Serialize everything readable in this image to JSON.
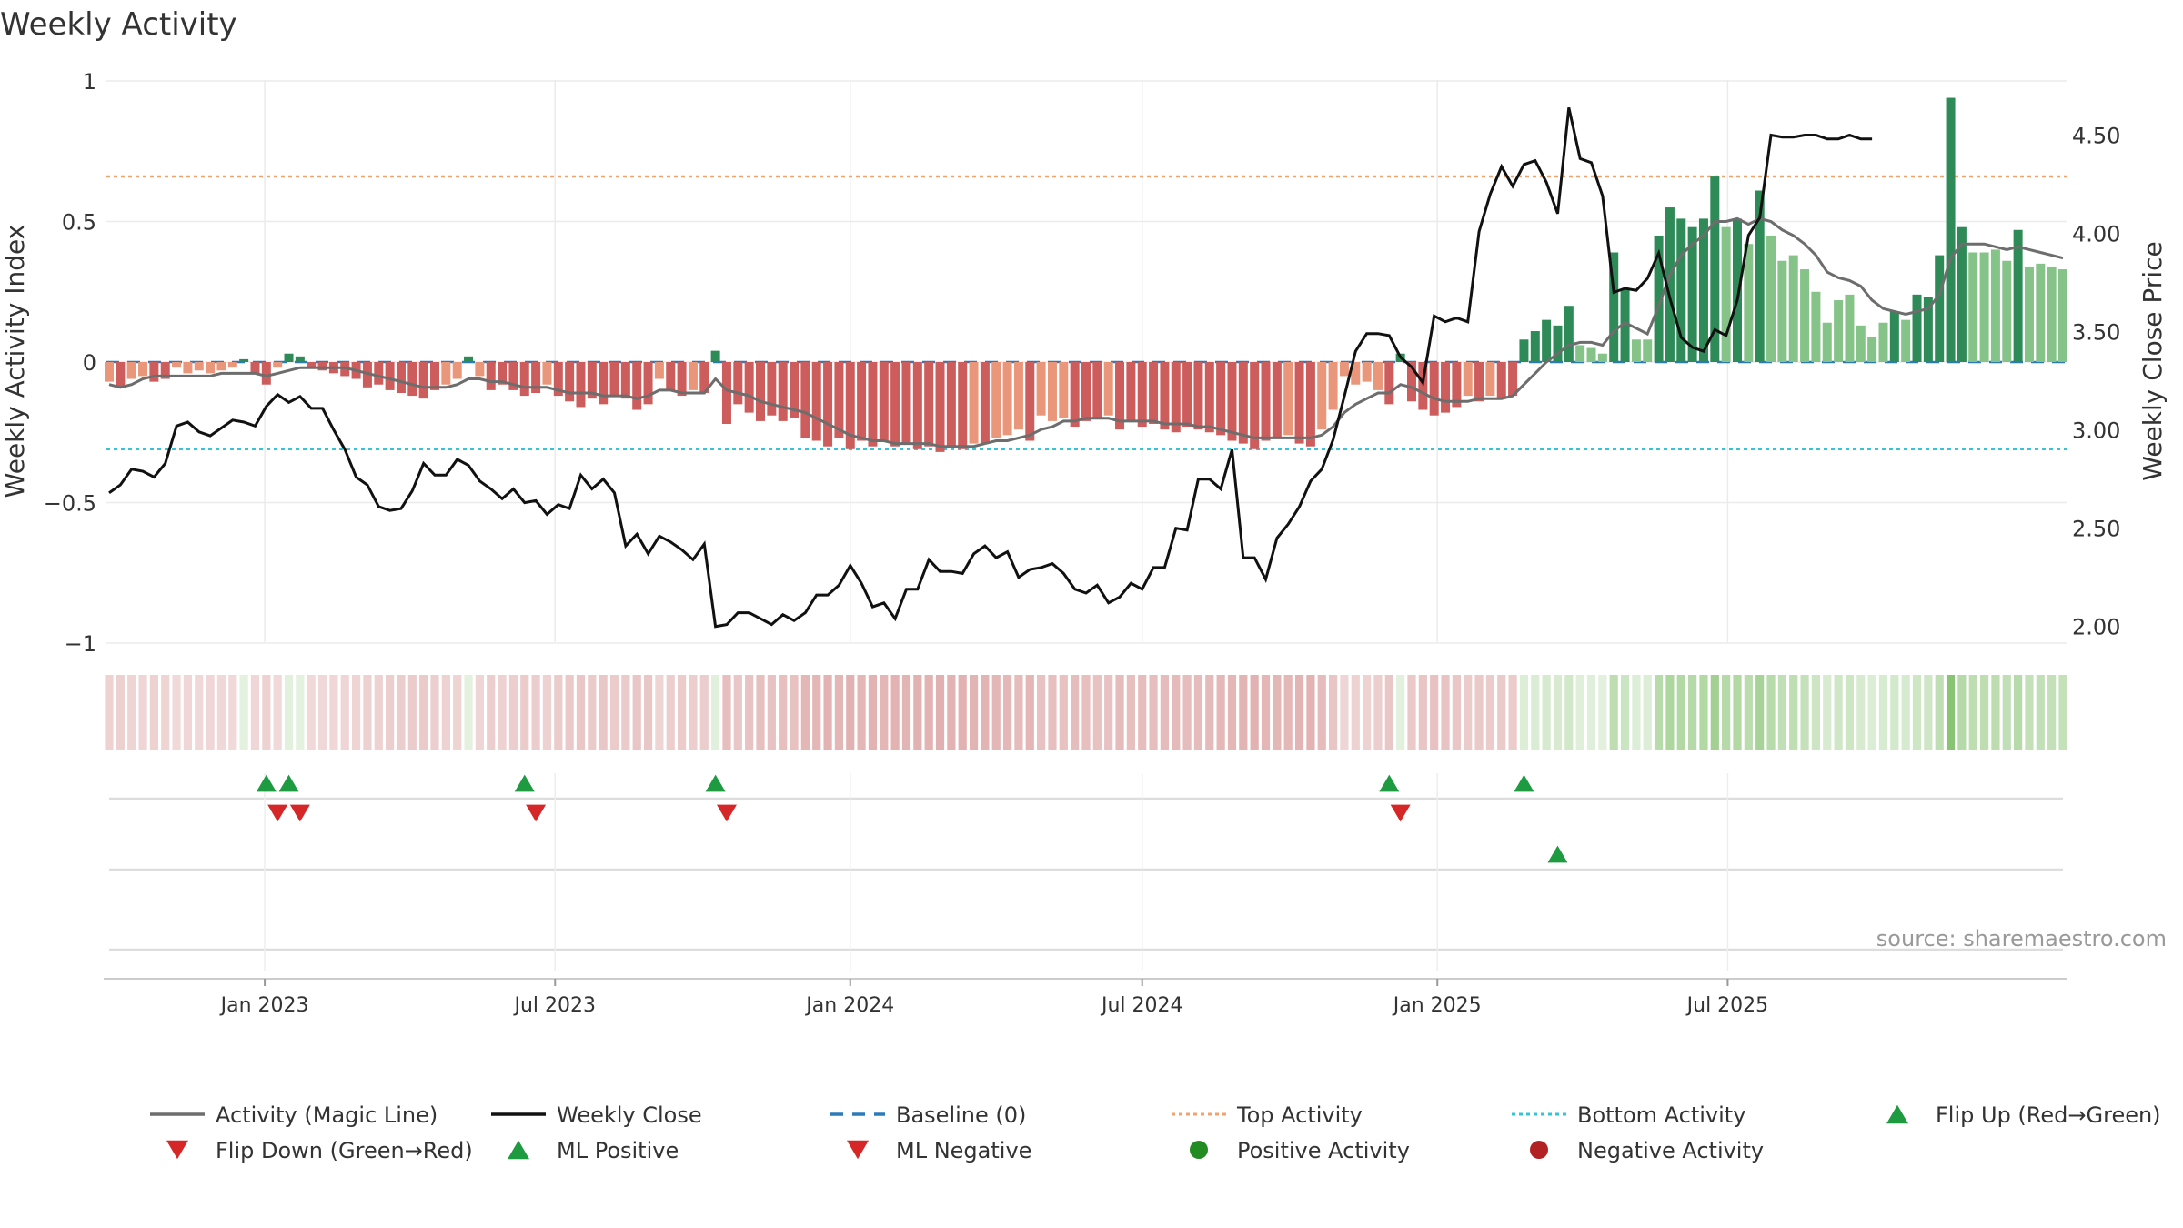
{
  "page": {
    "title": "Weekly Activity"
  },
  "chart_data": {
    "type": "combo-bar-line",
    "title": "Weekly Activity",
    "source": "source: sharemaestro.com",
    "x_start": "2022-09-26",
    "x_step_days": 7,
    "x_ticks": [
      "Jan 2023",
      "Jul 2023",
      "Jan 2024",
      "Jul 2024",
      "Jan 2025",
      "Jul 2025"
    ],
    "y_left": {
      "label": "Weekly Activity Index",
      "range": [
        -1,
        1
      ],
      "ticks": [
        1,
        0.5,
        0,
        -0.5,
        -1
      ],
      "tick_labels": [
        "1",
        "0.5",
        "0",
        "−0.5",
        "−1"
      ]
    },
    "y_right": {
      "label": "Weekly Close Price",
      "range": [
        1.92,
        4.78
      ],
      "ticks": [
        4.5,
        4.0,
        3.5,
        3.0,
        2.5,
        2.0
      ],
      "tick_labels": [
        "4.50",
        "4.00",
        "3.50",
        "3.00",
        "2.50",
        "2.00"
      ]
    },
    "activity": [
      -0.07,
      -0.09,
      -0.06,
      -0.05,
      -0.07,
      -0.06,
      -0.02,
      -0.04,
      -0.03,
      -0.04,
      -0.03,
      -0.02,
      0.01,
      -0.04,
      -0.08,
      -0.02,
      0.03,
      0.02,
      -0.02,
      -0.03,
      -0.04,
      -0.05,
      -0.06,
      -0.09,
      -0.08,
      -0.1,
      -0.11,
      -0.12,
      -0.13,
      -0.1,
      -0.08,
      -0.06,
      0.02,
      -0.05,
      -0.1,
      -0.08,
      -0.1,
      -0.12,
      -0.11,
      -0.08,
      -0.12,
      -0.14,
      -0.16,
      -0.13,
      -0.15,
      -0.12,
      -0.13,
      -0.17,
      -0.15,
      -0.06,
      -0.1,
      -0.12,
      -0.1,
      -0.11,
      0.04,
      -0.22,
      -0.15,
      -0.18,
      -0.21,
      -0.19,
      -0.21,
      -0.2,
      -0.27,
      -0.28,
      -0.3,
      -0.27,
      -0.31,
      -0.28,
      -0.3,
      -0.28,
      -0.3,
      -0.29,
      -0.31,
      -0.3,
      -0.32,
      -0.3,
      -0.31,
      -0.29,
      -0.29,
      -0.27,
      -0.26,
      -0.24,
      -0.28,
      -0.19,
      -0.21,
      -0.2,
      -0.23,
      -0.21,
      -0.2,
      -0.19,
      -0.24,
      -0.21,
      -0.23,
      -0.22,
      -0.24,
      -0.25,
      -0.23,
      -0.24,
      -0.25,
      -0.26,
      -0.28,
      -0.29,
      -0.31,
      -0.28,
      -0.27,
      -0.26,
      -0.29,
      -0.3,
      -0.24,
      -0.17,
      -0.05,
      -0.08,
      -0.07,
      -0.1,
      -0.15,
      0.03,
      -0.14,
      -0.17,
      -0.19,
      -0.18,
      -0.16,
      -0.12,
      -0.14,
      -0.12,
      -0.13,
      -0.12,
      0.08,
      0.11,
      0.15,
      0.13,
      0.2,
      0.06,
      0.05,
      0.03,
      0.39,
      0.26,
      0.08,
      0.08,
      0.45,
      0.55,
      0.51,
      0.48,
      0.51,
      0.66,
      0.48,
      0.51,
      0.42,
      0.61,
      0.45,
      0.36,
      0.38,
      0.33,
      0.25,
      0.14,
      0.22,
      0.24,
      0.13,
      0.09,
      0.14,
      0.18,
      0.15,
      0.24,
      0.23,
      0.38,
      0.94,
      0.48,
      0.39,
      0.39,
      0.4,
      0.36,
      0.47,
      0.34,
      0.35,
      0.34,
      0.33
    ],
    "magic_line": [
      -0.08,
      -0.09,
      -0.08,
      -0.06,
      -0.05,
      -0.05,
      -0.05,
      -0.05,
      -0.05,
      -0.05,
      -0.04,
      -0.04,
      -0.04,
      -0.04,
      -0.05,
      -0.04,
      -0.03,
      -0.02,
      -0.02,
      -0.02,
      -0.02,
      -0.02,
      -0.03,
      -0.04,
      -0.05,
      -0.06,
      -0.07,
      -0.08,
      -0.09,
      -0.09,
      -0.09,
      -0.08,
      -0.06,
      -0.06,
      -0.07,
      -0.07,
      -0.08,
      -0.09,
      -0.09,
      -0.09,
      -0.1,
      -0.11,
      -0.11,
      -0.11,
      -0.12,
      -0.12,
      -0.12,
      -0.13,
      -0.12,
      -0.1,
      -0.1,
      -0.11,
      -0.11,
      -0.11,
      -0.06,
      -0.1,
      -0.11,
      -0.12,
      -0.14,
      -0.15,
      -0.16,
      -0.17,
      -0.18,
      -0.2,
      -0.22,
      -0.24,
      -0.26,
      -0.27,
      -0.28,
      -0.28,
      -0.29,
      -0.29,
      -0.29,
      -0.29,
      -0.3,
      -0.3,
      -0.3,
      -0.3,
      -0.29,
      -0.28,
      -0.28,
      -0.27,
      -0.26,
      -0.24,
      -0.23,
      -0.21,
      -0.21,
      -0.2,
      -0.2,
      -0.2,
      -0.21,
      -0.21,
      -0.21,
      -0.21,
      -0.22,
      -0.22,
      -0.22,
      -0.23,
      -0.23,
      -0.24,
      -0.25,
      -0.26,
      -0.27,
      -0.27,
      -0.27,
      -0.27,
      -0.27,
      -0.27,
      -0.26,
      -0.23,
      -0.18,
      -0.15,
      -0.13,
      -0.11,
      -0.11,
      -0.08,
      -0.09,
      -0.11,
      -0.13,
      -0.14,
      -0.14,
      -0.14,
      -0.13,
      -0.13,
      -0.13,
      -0.12,
      -0.08,
      -0.04,
      0.0,
      0.03,
      0.06,
      0.07,
      0.07,
      0.06,
      0.11,
      0.14,
      0.12,
      0.1,
      0.2,
      0.31,
      0.38,
      0.42,
      0.45,
      0.5,
      0.5,
      0.51,
      0.49,
      0.51,
      0.5,
      0.47,
      0.45,
      0.42,
      0.38,
      0.32,
      0.3,
      0.29,
      0.27,
      0.22,
      0.19,
      0.18,
      0.17,
      0.18,
      0.19,
      0.24,
      0.37,
      0.42,
      0.42,
      0.42,
      0.41,
      0.4,
      0.41,
      0.4,
      0.39,
      0.38,
      0.37
    ],
    "weekly_close": [
      2.68,
      2.72,
      2.8,
      2.79,
      2.76,
      2.83,
      3.02,
      3.04,
      2.99,
      2.97,
      3.01,
      3.05,
      3.04,
      3.02,
      3.12,
      3.18,
      3.14,
      3.17,
      3.11,
      3.11,
      3.0,
      2.9,
      2.76,
      2.72,
      2.61,
      2.59,
      2.6,
      2.69,
      2.83,
      2.77,
      2.77,
      2.85,
      2.82,
      2.74,
      2.7,
      2.65,
      2.7,
      2.63,
      2.64,
      2.57,
      2.62,
      2.6,
      2.77,
      2.7,
      2.75,
      2.68,
      2.41,
      2.47,
      2.37,
      2.46,
      2.43,
      2.39,
      2.34,
      2.42,
      2.0,
      2.01,
      2.07,
      2.07,
      2.04,
      2.01,
      2.06,
      2.03,
      2.07,
      2.16,
      2.16,
      2.21,
      2.31,
      2.22,
      2.1,
      2.12,
      2.04,
      2.19,
      2.19,
      2.34,
      2.28,
      2.28,
      2.27,
      2.37,
      2.41,
      2.35,
      2.38,
      2.25,
      2.29,
      2.3,
      2.32,
      2.27,
      2.19,
      2.17,
      2.21,
      2.12,
      2.15,
      2.22,
      2.19,
      2.3,
      2.3,
      2.5,
      2.49,
      2.75,
      2.75,
      2.7,
      2.9,
      2.35,
      2.35,
      2.24,
      2.45,
      2.52,
      2.61,
      2.74,
      2.8,
      2.95,
      3.17,
      3.4,
      3.49,
      3.49,
      3.48,
      3.37,
      3.32,
      3.24,
      3.58,
      3.55,
      3.57,
      3.55,
      4.01,
      4.2,
      4.34,
      4.24,
      4.35,
      4.37,
      4.26,
      4.1,
      4.64,
      4.38,
      4.36,
      4.19,
      3.7,
      3.72,
      3.71,
      3.77,
      3.9,
      3.67,
      3.47,
      3.42,
      3.4,
      3.51,
      3.48,
      3.66,
      3.99,
      4.08,
      4.5,
      4.49,
      4.49,
      4.5,
      4.5,
      4.48,
      4.48,
      4.5,
      4.48,
      4.48
    ],
    "reference_lines": {
      "baseline": 0,
      "top_activity": 0.66,
      "bottom_activity": -0.31
    },
    "flip_up_weeks": [
      14,
      16,
      37,
      54,
      114,
      126
    ],
    "flip_down_weeks": [
      15,
      17,
      38,
      55,
      115
    ],
    "ml_positive_weeks": [
      129
    ],
    "ml_negative_weeks": [],
    "legend": [
      {
        "name": "Activity (Magic Line)",
        "kind": "line",
        "color": "#6d6d6d"
      },
      {
        "name": "Weekly Close",
        "kind": "line",
        "color": "#111111"
      },
      {
        "name": "Baseline (0)",
        "kind": "dash",
        "color": "#2b7bba"
      },
      {
        "name": "Top Activity",
        "kind": "dot",
        "color": "#f2a26b"
      },
      {
        "name": "Bottom Activity",
        "kind": "dot",
        "color": "#35c3d6"
      },
      {
        "name": "Flip Up (Red→Green)",
        "kind": "tri-up",
        "color": "#1e9a41"
      },
      {
        "name": "Flip Down (Green→Red)",
        "kind": "tri-down",
        "color": "#d62728"
      },
      {
        "name": "ML Positive",
        "kind": "tri-up",
        "color": "#1e9a41"
      },
      {
        "name": "ML Negative",
        "kind": "tri-down",
        "color": "#d62728"
      },
      {
        "name": "Positive Activity",
        "kind": "circle",
        "color": "#228b22"
      },
      {
        "name": "Negative Activity",
        "kind": "circle",
        "color": "#b22222"
      }
    ],
    "colors": {
      "pos_strong": "#2e8b57",
      "pos_light": "#86c389",
      "neg_strong": "#cd5c5c",
      "neg_light": "#e9967a",
      "magic_line": "#6d6d6d",
      "close_line": "#111111",
      "grid": "#ebebeb"
    }
  }
}
